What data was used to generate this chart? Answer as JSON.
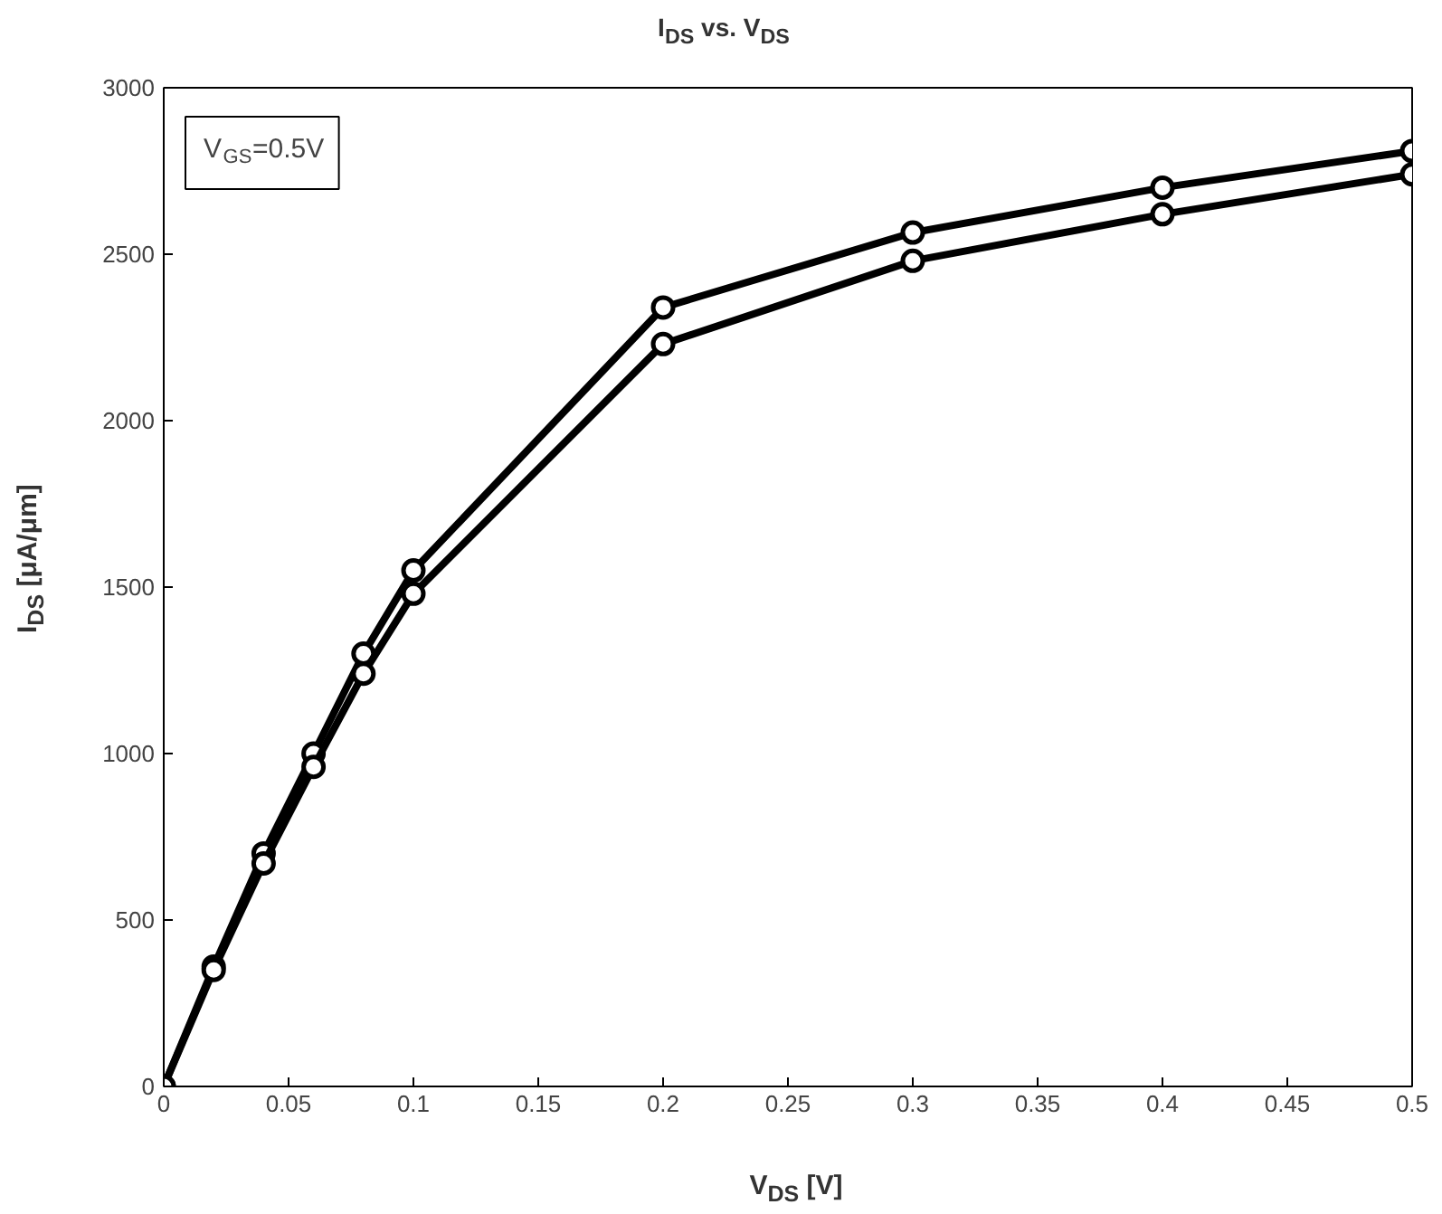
{
  "chart_data": {
    "type": "line",
    "title": "I$_{DS}$ vs. V$_{DS}$",
    "xlabel": "V$_{DS}$ [V]",
    "ylabel": "I$_{DS}$ [μA/μm]",
    "annotations": [
      "V$_{GS}$=0.5V"
    ],
    "x": [
      0,
      0.02,
      0.04,
      0.06,
      0.08,
      0.1,
      0.2,
      0.3,
      0.4,
      0.5
    ],
    "series": [
      {
        "color": "#000000",
        "values": [
          0,
          360,
          700,
          1000,
          1300,
          1550,
          2340,
          2565,
          2700,
          2810
        ]
      },
      {
        "color": "#000000",
        "values": [
          0,
          350,
          670,
          960,
          1240,
          1480,
          2230,
          2480,
          2620,
          2740
        ]
      }
    ],
    "xlim": [
      0,
      0.5
    ],
    "ylim": [
      0,
      3000
    ],
    "xticks": [
      0,
      {
        "value": 0.05,
        "label": "0.05"
      },
      {
        "value": 0.1,
        "label": "0.1"
      },
      {
        "value": 0.15,
        "label": "0.15"
      },
      {
        "value": 0.2,
        "label": "0.2"
      },
      {
        "value": 0.25,
        "label": "0.25"
      },
      {
        "value": 0.3,
        "label": "0.3"
      },
      {
        "value": 0.35,
        "label": "0.35"
      },
      {
        "value": 0.4,
        "label": "0.4"
      },
      {
        "value": 0.45,
        "label": "0.45"
      },
      {
        "value": 0.5,
        "label": "0.5"
      }
    ],
    "yticks": [
      0,
      500,
      1000,
      1500,
      2000,
      2500,
      3000
    ],
    "grid": false,
    "marker": "circle",
    "line_style": "solid"
  }
}
